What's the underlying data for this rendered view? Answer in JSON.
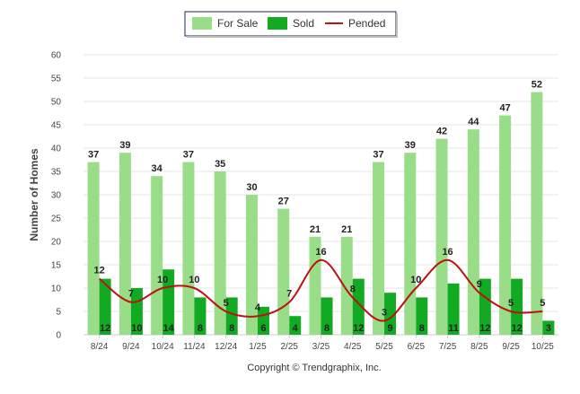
{
  "chart_data": {
    "type": "bar",
    "categories": [
      "8/24",
      "9/24",
      "10/24",
      "11/24",
      "12/24",
      "1/25",
      "2/25",
      "3/25",
      "4/25",
      "5/25",
      "6/25",
      "7/25",
      "8/25",
      "9/25",
      "10/25"
    ],
    "series": [
      {
        "name": "For Sale",
        "type": "bar",
        "color": "#99dd88",
        "values": [
          37,
          39,
          34,
          37,
          35,
          30,
          27,
          21,
          21,
          37,
          39,
          42,
          44,
          47,
          52
        ]
      },
      {
        "name": "Sold",
        "type": "bar",
        "color": "#11aa22",
        "values": [
          12,
          10,
          14,
          8,
          8,
          6,
          4,
          8,
          12,
          9,
          8,
          11,
          12,
          12,
          3
        ]
      },
      {
        "name": "Pended",
        "type": "line",
        "color": "#bb1111",
        "values": [
          12,
          7,
          10,
          10,
          5,
          4,
          7,
          16,
          8,
          3,
          10,
          16,
          9,
          5,
          5
        ]
      }
    ],
    "xlabel": "",
    "ylabel": "Number of Homes",
    "ylim": [
      0,
      60
    ],
    "yticks": [
      0,
      5,
      10,
      15,
      20,
      25,
      30,
      35,
      40,
      45,
      50,
      55,
      60
    ],
    "grid": true,
    "legend_position": "top-center"
  },
  "footer": {
    "copyright": "Copyright © Trendgraphix, Inc."
  }
}
